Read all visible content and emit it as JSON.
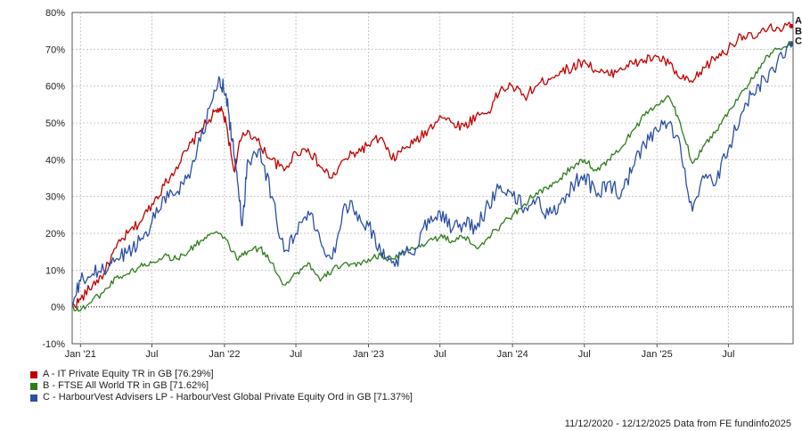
{
  "chart_data": {
    "type": "line",
    "x_ticks": [
      "Jan '21",
      "Jul",
      "Jan '22",
      "Jul",
      "Jan '23",
      "Jul",
      "Jan '24",
      "Jul",
      "Jan '25",
      "Jul"
    ],
    "y_ticks": [
      "80%",
      "70%",
      "60%",
      "50%",
      "40%",
      "30%",
      "20%",
      "10%",
      "0%",
      "-10%"
    ],
    "ylim": [
      -10,
      80
    ],
    "xlim": [
      "2020-12-11",
      "2025-12-12"
    ],
    "grid": true,
    "zero_line": "dotted",
    "series": [
      {
        "id": "A",
        "name": "A - IT Private Equity TR in GB [76.29%]",
        "color": "#c00000",
        "points": [
          [
            "2020-12-11",
            0
          ],
          [
            "2021-01-01",
            2
          ],
          [
            "2021-02-01",
            6
          ],
          [
            "2021-03-01",
            9
          ],
          [
            "2021-04-01",
            16
          ],
          [
            "2021-05-01",
            20
          ],
          [
            "2021-06-01",
            23
          ],
          [
            "2021-07-01",
            28
          ],
          [
            "2021-08-01",
            33
          ],
          [
            "2021-09-01",
            38
          ],
          [
            "2021-10-01",
            43
          ],
          [
            "2021-11-01",
            48
          ],
          [
            "2021-12-01",
            52
          ],
          [
            "2021-12-20",
            54
          ],
          [
            "2022-01-05",
            50
          ],
          [
            "2022-01-25",
            37
          ],
          [
            "2022-02-10",
            45
          ],
          [
            "2022-03-01",
            48
          ],
          [
            "2022-04-01",
            44
          ],
          [
            "2022-05-01",
            40
          ],
          [
            "2022-06-01",
            37
          ],
          [
            "2022-07-01",
            42
          ],
          [
            "2022-08-01",
            43
          ],
          [
            "2022-09-01",
            38
          ],
          [
            "2022-10-01",
            35
          ],
          [
            "2022-11-01",
            40
          ],
          [
            "2022-12-01",
            42
          ],
          [
            "2023-01-01",
            44
          ],
          [
            "2023-02-01",
            46
          ],
          [
            "2023-03-01",
            40
          ],
          [
            "2023-04-01",
            43
          ],
          [
            "2023-05-01",
            45
          ],
          [
            "2023-06-01",
            48
          ],
          [
            "2023-07-01",
            52
          ],
          [
            "2023-08-01",
            50
          ],
          [
            "2023-09-01",
            49
          ],
          [
            "2023-10-01",
            52
          ],
          [
            "2023-11-01",
            53
          ],
          [
            "2023-12-01",
            59
          ],
          [
            "2024-01-01",
            60
          ],
          [
            "2024-02-01",
            57
          ],
          [
            "2024-03-01",
            60
          ],
          [
            "2024-04-01",
            62
          ],
          [
            "2024-05-01",
            64
          ],
          [
            "2024-06-01",
            65
          ],
          [
            "2024-07-01",
            67
          ],
          [
            "2024-08-01",
            64
          ],
          [
            "2024-09-01",
            63
          ],
          [
            "2024-10-01",
            65
          ],
          [
            "2024-11-01",
            66
          ],
          [
            "2024-12-01",
            67
          ],
          [
            "2025-01-01",
            68
          ],
          [
            "2025-02-01",
            66
          ],
          [
            "2025-03-01",
            62
          ],
          [
            "2025-04-01",
            61
          ],
          [
            "2025-05-01",
            65
          ],
          [
            "2025-06-01",
            68
          ],
          [
            "2025-07-01",
            70
          ],
          [
            "2025-08-01",
            74
          ],
          [
            "2025-09-01",
            73
          ],
          [
            "2025-10-01",
            75
          ],
          [
            "2025-11-01",
            76
          ],
          [
            "2025-12-12",
            76.29
          ]
        ]
      },
      {
        "id": "B",
        "name": "B - FTSE All World TR in GB [71.62%]",
        "color": "#2e7d1a",
        "points": [
          [
            "2020-12-11",
            0
          ],
          [
            "2021-01-01",
            -1
          ],
          [
            "2021-02-01",
            2
          ],
          [
            "2021-03-01",
            4
          ],
          [
            "2021-04-01",
            8
          ],
          [
            "2021-05-01",
            9
          ],
          [
            "2021-06-01",
            11
          ],
          [
            "2021-07-01",
            12
          ],
          [
            "2021-08-01",
            14
          ],
          [
            "2021-09-01",
            13
          ],
          [
            "2021-10-01",
            15
          ],
          [
            "2021-11-01",
            18
          ],
          [
            "2021-12-01",
            20
          ],
          [
            "2022-01-01",
            19
          ],
          [
            "2022-02-01",
            13
          ],
          [
            "2022-03-01",
            15
          ],
          [
            "2022-04-01",
            16
          ],
          [
            "2022-05-01",
            12
          ],
          [
            "2022-06-01",
            6
          ],
          [
            "2022-07-01",
            9
          ],
          [
            "2022-08-01",
            12
          ],
          [
            "2022-09-01",
            7
          ],
          [
            "2022-10-01",
            10
          ],
          [
            "2022-11-01",
            12
          ],
          [
            "2022-12-01",
            11
          ],
          [
            "2023-01-01",
            13
          ],
          [
            "2023-02-01",
            14
          ],
          [
            "2023-03-01",
            13
          ],
          [
            "2023-04-01",
            15
          ],
          [
            "2023-05-01",
            16
          ],
          [
            "2023-06-01",
            18
          ],
          [
            "2023-07-01",
            19
          ],
          [
            "2023-08-01",
            18
          ],
          [
            "2023-09-01",
            19
          ],
          [
            "2023-10-01",
            16
          ],
          [
            "2023-11-01",
            19
          ],
          [
            "2023-12-01",
            22
          ],
          [
            "2024-01-01",
            25
          ],
          [
            "2024-02-01",
            28
          ],
          [
            "2024-03-01",
            31
          ],
          [
            "2024-04-01",
            32
          ],
          [
            "2024-05-01",
            35
          ],
          [
            "2024-06-01",
            38
          ],
          [
            "2024-07-01",
            40
          ],
          [
            "2024-08-01",
            37
          ],
          [
            "2024-09-01",
            40
          ],
          [
            "2024-10-01",
            43
          ],
          [
            "2024-11-01",
            48
          ],
          [
            "2024-12-01",
            52
          ],
          [
            "2025-01-01",
            55
          ],
          [
            "2025-02-01",
            57
          ],
          [
            "2025-03-01",
            50
          ],
          [
            "2025-04-01",
            39
          ],
          [
            "2025-05-01",
            44
          ],
          [
            "2025-06-01",
            48
          ],
          [
            "2025-07-01",
            53
          ],
          [
            "2025-08-01",
            58
          ],
          [
            "2025-09-01",
            62
          ],
          [
            "2025-10-01",
            67
          ],
          [
            "2025-11-01",
            70
          ],
          [
            "2025-12-12",
            71.62
          ]
        ]
      },
      {
        "id": "C",
        "name": "C - HarbourVest Advisers LP - HarbourVest Global Private Equity Ord in GB [71.37%]",
        "color": "#2a4fa6",
        "points": [
          [
            "2020-12-11",
            0
          ],
          [
            "2021-01-01",
            7
          ],
          [
            "2021-02-01",
            9
          ],
          [
            "2021-03-01",
            10
          ],
          [
            "2021-04-01",
            13
          ],
          [
            "2021-05-01",
            15
          ],
          [
            "2021-06-01",
            18
          ],
          [
            "2021-07-01",
            23
          ],
          [
            "2021-08-01",
            30
          ],
          [
            "2021-09-01",
            31
          ],
          [
            "2021-10-01",
            36
          ],
          [
            "2021-11-01",
            45
          ],
          [
            "2021-12-01",
            56
          ],
          [
            "2021-12-20",
            62
          ],
          [
            "2022-01-05",
            58
          ],
          [
            "2022-01-20",
            45
          ],
          [
            "2022-02-01",
            37
          ],
          [
            "2022-02-15",
            22
          ],
          [
            "2022-03-01",
            40
          ],
          [
            "2022-04-01",
            43
          ],
          [
            "2022-05-01",
            30
          ],
          [
            "2022-06-01",
            15
          ],
          [
            "2022-07-01",
            20
          ],
          [
            "2022-08-01",
            26
          ],
          [
            "2022-09-01",
            18
          ],
          [
            "2022-10-01",
            13
          ],
          [
            "2022-11-01",
            28
          ],
          [
            "2022-12-01",
            26
          ],
          [
            "2023-01-01",
            22
          ],
          [
            "2023-02-01",
            15
          ],
          [
            "2023-03-01",
            12
          ],
          [
            "2023-04-01",
            14
          ],
          [
            "2023-05-01",
            16
          ],
          [
            "2023-06-01",
            24
          ],
          [
            "2023-07-01",
            26
          ],
          [
            "2023-08-01",
            21
          ],
          [
            "2023-09-01",
            23
          ],
          [
            "2023-10-01",
            21
          ],
          [
            "2023-11-01",
            28
          ],
          [
            "2023-12-01",
            33
          ],
          [
            "2024-01-01",
            30
          ],
          [
            "2024-02-01",
            27
          ],
          [
            "2024-03-01",
            29
          ],
          [
            "2024-04-01",
            25
          ],
          [
            "2024-05-01",
            28
          ],
          [
            "2024-06-01",
            33
          ],
          [
            "2024-07-01",
            36
          ],
          [
            "2024-08-01",
            30
          ],
          [
            "2024-09-01",
            34
          ],
          [
            "2024-10-01",
            30
          ],
          [
            "2024-11-01",
            38
          ],
          [
            "2024-12-01",
            44
          ],
          [
            "2025-01-01",
            48
          ],
          [
            "2025-02-01",
            50
          ],
          [
            "2025-03-01",
            44
          ],
          [
            "2025-04-01",
            26
          ],
          [
            "2025-05-01",
            35
          ],
          [
            "2025-06-01",
            34
          ],
          [
            "2025-07-01",
            43
          ],
          [
            "2025-08-01",
            52
          ],
          [
            "2025-09-01",
            58
          ],
          [
            "2025-10-01",
            62
          ],
          [
            "2025-11-01",
            66
          ],
          [
            "2025-12-12",
            71.37
          ]
        ]
      }
    ]
  },
  "legend": [
    {
      "label": "A - IT Private Equity TR in GB [76.29%]",
      "color": "#c00000"
    },
    {
      "label": "B - FTSE All World TR in GB [71.62%]",
      "color": "#2e7d1a"
    },
    {
      "label": "C - HarbourVest Advisers LP - HarbourVest Global Private Equity Ord in GB [71.37%]",
      "color": "#2a4fa6"
    }
  ],
  "footer": "11/12/2020 - 12/12/2025 Data from FE fundinfo2025"
}
